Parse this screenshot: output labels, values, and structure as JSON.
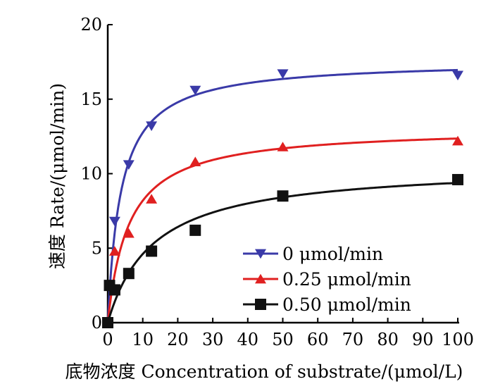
{
  "chart_data": {
    "type": "scatter",
    "title": "",
    "xlabel": "底物浓度 Concentration of substrate/(μmol/L)",
    "ylabel": "速度  Rate/(μmol/min)",
    "xlim": [
      0,
      100
    ],
    "ylim": [
      0,
      20
    ],
    "x_ticks": [
      "0",
      "10",
      "20",
      "30",
      "40",
      "50",
      "60",
      "70",
      "80",
      "90",
      "100"
    ],
    "y_ticks": [
      "0",
      "5",
      "10",
      "15",
      "20"
    ],
    "grid": false,
    "legend_position": "bottom-right",
    "series": [
      {
        "name": "0 μmol/min",
        "marker": "triangle-down",
        "color": "#3a3aa8",
        "x": [
          0,
          2,
          6,
          12.5,
          25,
          50,
          100
        ],
        "y": [
          0,
          6.8,
          10.6,
          13.2,
          15.6,
          16.7,
          16.6
        ],
        "fit": {
          "vmax": 17.6,
          "km": 3.8
        }
      },
      {
        "name": "0.25 μmol/min",
        "marker": "triangle-up",
        "color": "#e02020",
        "x": [
          0,
          2,
          6,
          12.5,
          25,
          50,
          100
        ],
        "y": [
          0,
          4.8,
          6.0,
          8.3,
          10.8,
          11.8,
          12.2
        ],
        "fit": {
          "vmax": 13.1,
          "km": 6.0
        }
      },
      {
        "name": "0.50 μmol/min",
        "marker": "square",
        "color": "#111111",
        "x": [
          0,
          0.5,
          2,
          6,
          12.5,
          25,
          50,
          100
        ],
        "y": [
          0,
          2.5,
          2.2,
          3.3,
          4.8,
          6.2,
          8.5,
          9.6
        ],
        "fit": {
          "vmax": 10.6,
          "km": 13.0
        }
      }
    ]
  }
}
